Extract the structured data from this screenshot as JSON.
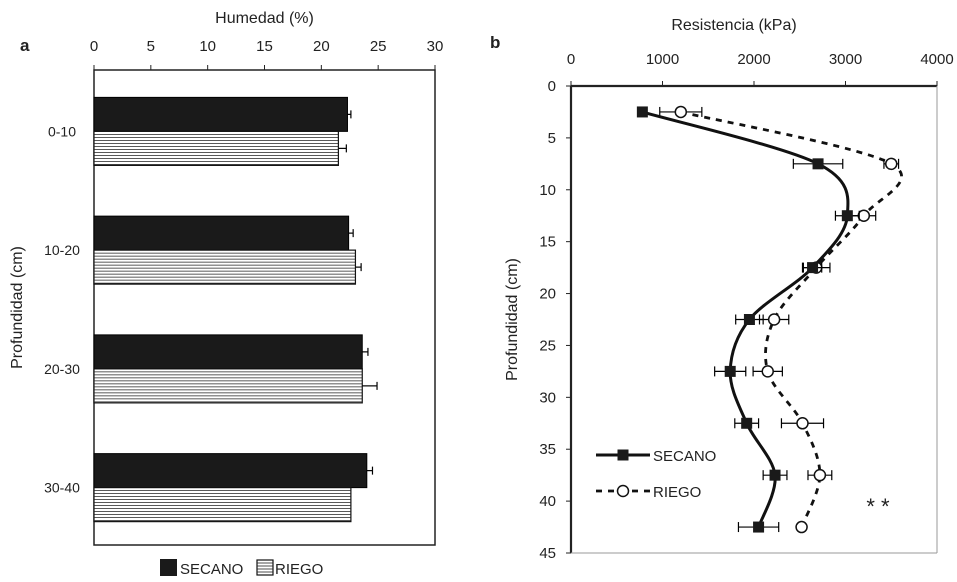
{
  "chart_data": [
    {
      "panel": "a",
      "type": "bar",
      "orientation": "horizontal",
      "title": "Humedad (%)",
      "xlabel": "Humedad (%)",
      "ylabel": "Profundidad (cm)",
      "xlim": [
        0,
        30
      ],
      "x_ticks": [
        "0",
        "5",
        "10",
        "15",
        "20",
        "25",
        "30"
      ],
      "categories": [
        "0-10",
        "10-20",
        "20-30",
        "30-40"
      ],
      "series": [
        {
          "name": "SECANO",
          "values": [
            22.3,
            22.4,
            23.6,
            24.0
          ],
          "errors": [
            0.3,
            0.4,
            0.5,
            0.5
          ],
          "color": "#1a1a1a"
        },
        {
          "name": "RIEGO",
          "values": [
            21.5,
            23.0,
            23.6,
            22.6
          ],
          "errors": [
            0.7,
            0.5,
            1.3,
            0.0
          ],
          "color": "#ffffff"
        }
      ],
      "legend_position": "bottom",
      "grid": false
    },
    {
      "panel": "b",
      "type": "line",
      "title": "Resistencia (kPa)",
      "xlabel": "Resistencia (kPa)",
      "ylabel": "Profundidad (cm)",
      "xlim": [
        0,
        4000
      ],
      "ylim": [
        0,
        45
      ],
      "x_ticks": [
        "0",
        "1000",
        "2000",
        "3000",
        "4000"
      ],
      "y_ticks": [
        "0",
        "5",
        "10",
        "15",
        "20",
        "25",
        "30",
        "35",
        "40",
        "45"
      ],
      "series": [
        {
          "name": "SECANO",
          "marker": "filled-square",
          "line": "solid",
          "points": [
            {
              "depth": 2.5,
              "value": 780,
              "error": 0
            },
            {
              "depth": 7.5,
              "value": 2700,
              "error": 270
            },
            {
              "depth": 12.5,
              "value": 3020,
              "error": 130
            },
            {
              "depth": 17.5,
              "value": 2640,
              "error": 100
            },
            {
              "depth": 22.5,
              "value": 1950,
              "error": 150
            },
            {
              "depth": 27.5,
              "value": 1740,
              "error": 170
            },
            {
              "depth": 32.5,
              "value": 1920,
              "error": 130
            },
            {
              "depth": 37.5,
              "value": 2230,
              "error": 130
            },
            {
              "depth": 42.5,
              "value": 2050,
              "error": 220
            }
          ]
        },
        {
          "name": "RIEGO",
          "marker": "open-circle",
          "line": "dashed",
          "points": [
            {
              "depth": 2.5,
              "value": 1200,
              "error": 230
            },
            {
              "depth": 7.5,
              "value": 3500,
              "error": 80
            },
            {
              "depth": 12.5,
              "value": 3200,
              "error": 130
            },
            {
              "depth": 17.5,
              "value": 2680,
              "error": 150
            },
            {
              "depth": 22.5,
              "value": 2220,
              "error": 160
            },
            {
              "depth": 27.5,
              "value": 2150,
              "error": 160
            },
            {
              "depth": 32.5,
              "value": 2530,
              "error": 230
            },
            {
              "depth": 37.5,
              "value": 2720,
              "error": 130
            },
            {
              "depth": 42.5,
              "value": 2520,
              "error": 0
            }
          ]
        }
      ],
      "annotations": [
        "* *"
      ],
      "legend_position": "bottom-left",
      "grid": false
    }
  ]
}
